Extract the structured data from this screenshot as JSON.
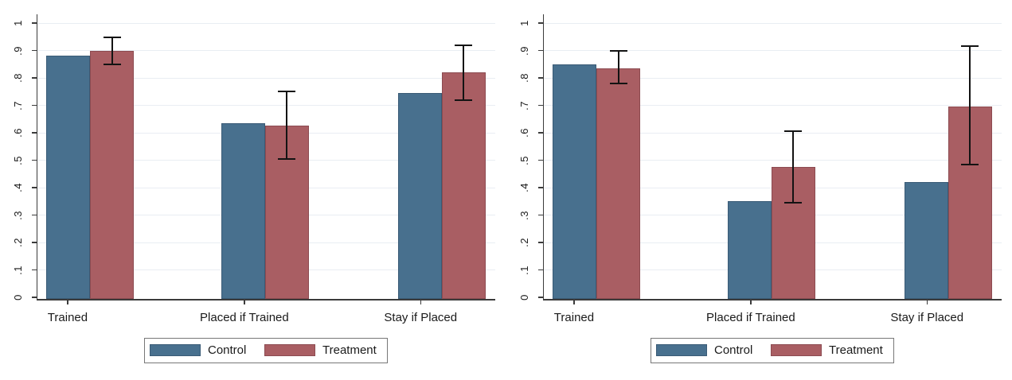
{
  "figure": {
    "background": "#ffffff"
  },
  "colors": {
    "control": "#48708E",
    "treatment": "#A95E63",
    "control_border": "#3A5B76",
    "treatment_border": "#8C4B51",
    "axis": "#3B3B3B",
    "grid": "#E9EDF3",
    "text": "#1A1A1A",
    "error_bar": "#131313",
    "legend_border": "#777777"
  },
  "chart_data": [
    {
      "type": "bar",
      "panel": "left",
      "title": "",
      "xlabel": "",
      "ylabel": "",
      "ylim": [
        0,
        1
      ],
      "grid": true,
      "legend_position": "bottom",
      "y_tick_values": [
        0,
        0.1,
        0.2,
        0.3,
        0.4,
        0.5,
        0.6,
        0.7,
        0.8,
        0.9,
        1
      ],
      "y_tick_labels": [
        "0",
        ".1",
        ".2",
        ".3",
        ".4",
        ".5",
        ".6",
        ".7",
        ".8",
        ".9",
        "1"
      ],
      "categories": [
        "Trained",
        "Placed if Trained",
        "Stay if Placed"
      ],
      "series": [
        {
          "name": "Control",
          "values": [
            0.88,
            0.635,
            0.745
          ]
        },
        {
          "name": "Treatment",
          "values": [
            0.9,
            0.625,
            0.82
          ],
          "error_low": [
            0.848,
            0.505,
            0.72
          ],
          "error_high": [
            0.947,
            0.75,
            0.92
          ]
        }
      ],
      "legend_labels": [
        "Control",
        "Treatment"
      ]
    },
    {
      "type": "bar",
      "panel": "right",
      "title": "",
      "xlabel": "",
      "ylabel": "",
      "ylim": [
        0,
        1
      ],
      "grid": true,
      "legend_position": "bottom",
      "y_tick_values": [
        0,
        0.1,
        0.2,
        0.3,
        0.4,
        0.5,
        0.6,
        0.7,
        0.8,
        0.9,
        1
      ],
      "y_tick_labels": [
        "0",
        ".1",
        ".2",
        ".3",
        ".4",
        ".5",
        ".6",
        ".7",
        ".8",
        ".9",
        "1"
      ],
      "categories": [
        "Trained",
        "Placed if Trained",
        "Stay if Placed"
      ],
      "series": [
        {
          "name": "Control",
          "values": [
            0.85,
            0.35,
            0.42
          ]
        },
        {
          "name": "Treatment",
          "values": [
            0.835,
            0.475,
            0.695
          ],
          "error_low": [
            0.78,
            0.345,
            0.485
          ],
          "error_high": [
            0.9,
            0.605,
            0.915
          ]
        }
      ],
      "legend_labels": [
        "Control",
        "Treatment"
      ]
    }
  ]
}
